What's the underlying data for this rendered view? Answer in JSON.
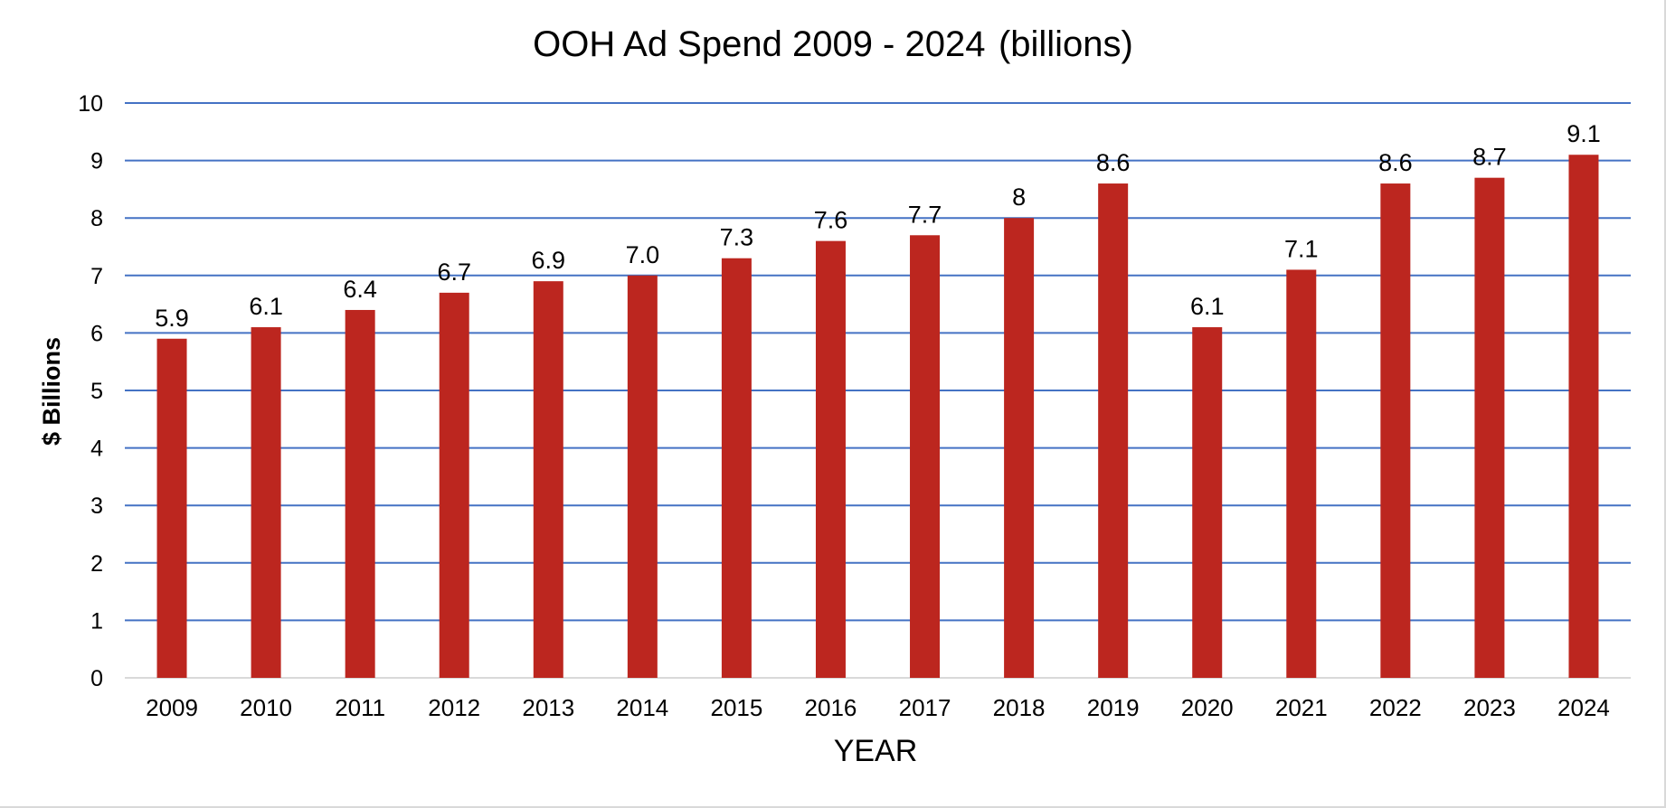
{
  "chart_data": {
    "type": "bar",
    "title": "OOH Ad Spend 2009 - 2024",
    "subtitle": "(billions)",
    "xlabel": "YEAR",
    "ylabel": "$ Billions",
    "ylim": [
      0,
      10
    ],
    "yticks": [
      "0",
      "1",
      "2",
      "3",
      "4",
      "5",
      "6",
      "7",
      "8",
      "9",
      "10"
    ],
    "grid": true,
    "legend": "none",
    "categories": [
      "2009",
      "2010",
      "2011",
      "2012",
      "2013",
      "2014",
      "2015",
      "2016",
      "2017",
      "2018",
      "2019",
      "2020",
      "2021",
      "2022",
      "2023",
      "2024"
    ],
    "values": [
      5.9,
      6.1,
      6.4,
      6.7,
      6.9,
      7.0,
      7.3,
      7.6,
      7.7,
      8,
      8.6,
      6.1,
      7.1,
      8.6,
      8.7,
      9.1
    ],
    "data_labels": [
      "5.9",
      "6.1",
      "6.4",
      "6.7",
      "6.9",
      "7.0",
      "7.3",
      "7.6",
      "7.7",
      "8",
      "8.6",
      "6.1",
      "7.1",
      "8.6",
      "8.7",
      "9.1"
    ],
    "colors": {
      "bar": "#BC261F",
      "gridline": "#4472C4",
      "baseline": "#D9D9D9"
    }
  }
}
